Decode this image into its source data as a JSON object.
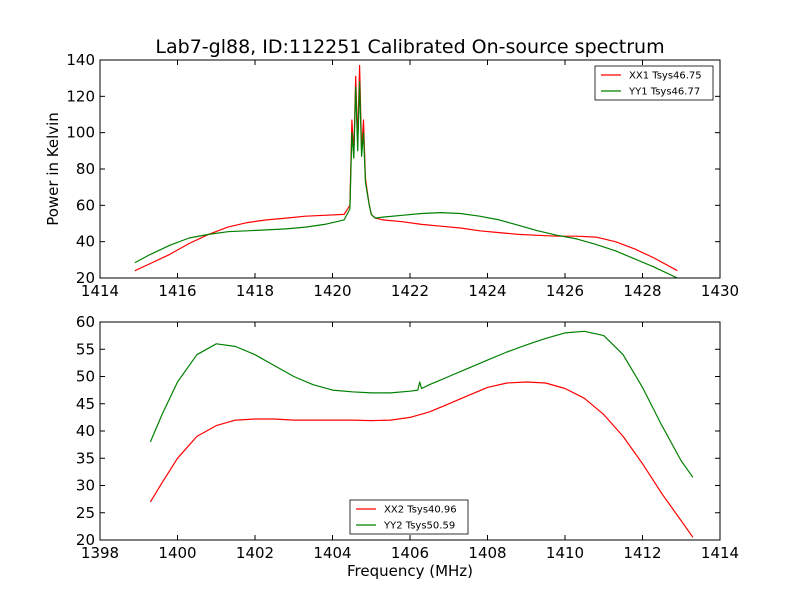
{
  "chart_data": [
    {
      "type": "line",
      "title": "Lab7-gl88, ID:112251 Calibrated On-source spectrum",
      "xlabel": "",
      "ylabel": "Power in Kelvin",
      "xlim": [
        1414,
        1430
      ],
      "ylim": [
        20,
        140
      ],
      "xticks": [
        "1414",
        "1416",
        "1418",
        "1420",
        "1422",
        "1424",
        "1426",
        "1428",
        "1430"
      ],
      "yticks": [
        "20",
        "40",
        "60",
        "80",
        "100",
        "120",
        "140"
      ],
      "grid": false,
      "legend_position": "top-right",
      "series": [
        {
          "name": "XX1 Tsys46.75",
          "color": "#ff0000",
          "x": [
            1414.9,
            1415.3,
            1415.8,
            1416.3,
            1416.8,
            1417.3,
            1417.8,
            1418.3,
            1418.8,
            1419.3,
            1419.8,
            1420.3,
            1420.45,
            1420.5,
            1420.55,
            1420.6,
            1420.65,
            1420.7,
            1420.75,
            1420.8,
            1420.85,
            1420.9,
            1420.95,
            1421.0,
            1421.1,
            1421.3,
            1421.8,
            1422.3,
            1422.8,
            1423.3,
            1423.8,
            1424.3,
            1424.8,
            1425.3,
            1425.8,
            1426.3,
            1426.8,
            1427.3,
            1427.8,
            1428.3,
            1428.9
          ],
          "y": [
            24,
            28,
            33,
            39,
            44,
            48,
            50.5,
            52,
            53,
            54,
            54.5,
            55,
            60,
            107,
            88,
            131,
            95,
            137,
            90,
            107,
            75,
            67,
            60,
            55,
            53,
            52,
            51,
            49.5,
            48.5,
            47.5,
            46,
            45,
            44,
            43.5,
            43,
            43,
            42.5,
            40,
            36,
            31,
            24
          ]
        },
        {
          "name": "YY1 Tsys46.77",
          "color": "#008000",
          "x": [
            1414.9,
            1415.3,
            1415.8,
            1416.3,
            1416.8,
            1417.3,
            1417.8,
            1418.3,
            1418.8,
            1419.3,
            1419.8,
            1420.3,
            1420.45,
            1420.5,
            1420.55,
            1420.6,
            1420.65,
            1420.7,
            1420.75,
            1420.8,
            1420.85,
            1420.9,
            1420.95,
            1421.0,
            1421.1,
            1421.3,
            1421.8,
            1422.3,
            1422.8,
            1423.3,
            1423.8,
            1424.3,
            1424.8,
            1425.3,
            1425.8,
            1426.3,
            1426.8,
            1427.3,
            1427.8,
            1428.3,
            1428.9
          ],
          "y": [
            28.5,
            33,
            38,
            42,
            44,
            45.5,
            46,
            46.5,
            47,
            48,
            49.5,
            52,
            58,
            100,
            86,
            125,
            90,
            128,
            87,
            100,
            73,
            66,
            60,
            55,
            53,
            53.5,
            54.5,
            55.5,
            56,
            55.5,
            54,
            52,
            49,
            46,
            43.5,
            41.5,
            38.5,
            35,
            30.5,
            26,
            20
          ]
        }
      ]
    },
    {
      "type": "line",
      "title": "",
      "xlabel": "Frequency (MHz)",
      "ylabel": "",
      "xlim": [
        1398,
        1414
      ],
      "ylim": [
        20,
        60
      ],
      "xticks": [
        "1398",
        "1400",
        "1402",
        "1404",
        "1406",
        "1408",
        "1410",
        "1412",
        "1414"
      ],
      "yticks": [
        "20",
        "25",
        "30",
        "35",
        "40",
        "45",
        "50",
        "55",
        "60"
      ],
      "grid": false,
      "legend_position": "bottom-center",
      "series": [
        {
          "name": "XX2 Tsys40.96",
          "color": "#ff0000",
          "x": [
            1399.3,
            1399.6,
            1400.0,
            1400.5,
            1401.0,
            1401.5,
            1402.0,
            1402.5,
            1403.0,
            1403.5,
            1404.0,
            1404.5,
            1405.0,
            1405.5,
            1406.0,
            1406.5,
            1407.0,
            1407.5,
            1408.0,
            1408.5,
            1409.0,
            1409.5,
            1410.0,
            1410.5,
            1411.0,
            1411.5,
            1412.0,
            1412.5,
            1413.0,
            1413.3
          ],
          "y": [
            27,
            30.5,
            35,
            39,
            41,
            42,
            42.2,
            42.2,
            42,
            42,
            42,
            42,
            41.9,
            42,
            42.5,
            43.5,
            45,
            46.5,
            48,
            48.8,
            49,
            48.8,
            47.8,
            46,
            43,
            39,
            34,
            28.5,
            23.5,
            20.5
          ]
        },
        {
          "name": "YY2 Tsys50.59",
          "color": "#008000",
          "x": [
            1399.3,
            1399.6,
            1400.0,
            1400.5,
            1401.0,
            1401.5,
            1402.0,
            1402.5,
            1403.0,
            1403.5,
            1404.0,
            1404.5,
            1405.0,
            1405.5,
            1406.0,
            1406.2,
            1406.25,
            1406.3,
            1406.5,
            1407.0,
            1407.5,
            1408.0,
            1408.5,
            1409.0,
            1409.5,
            1410.0,
            1410.5,
            1411.0,
            1411.5,
            1412.0,
            1412.5,
            1413.0,
            1413.3
          ],
          "y": [
            38,
            43,
            49,
            54,
            56,
            55.5,
            54,
            52,
            50,
            48.5,
            47.5,
            47.2,
            47,
            47,
            47.3,
            47.5,
            49,
            47.8,
            48.5,
            50,
            51.5,
            53,
            54.5,
            55.8,
            57,
            58,
            58.3,
            57.5,
            54,
            48,
            41,
            34.5,
            31.5
          ]
        }
      ]
    }
  ]
}
